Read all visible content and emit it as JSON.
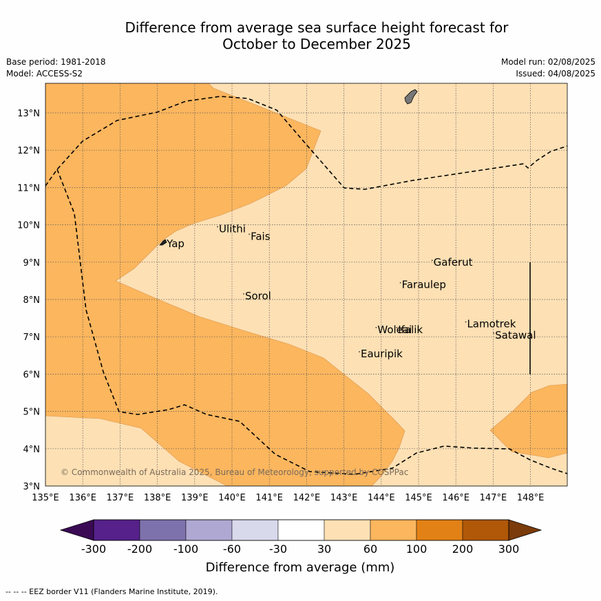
{
  "title": {
    "line1": "Difference from average sea surface height forecast for",
    "line2": "October to December 2025"
  },
  "meta": {
    "base_period": "Base period: 1981-2018",
    "model": "Model: ACCESS-S2",
    "model_run": "Model run: 02/08/2025",
    "issued": "Issued: 04/08/2025"
  },
  "map": {
    "lon_ticks": [
      "135°E",
      "136°E",
      "137°E",
      "138°E",
      "139°E",
      "140°E",
      "141°E",
      "142°E",
      "143°E",
      "144°E",
      "145°E",
      "146°E",
      "147°E",
      "148°E"
    ],
    "lat_ticks": [
      "3°N",
      "4°N",
      "5°N",
      "6°N",
      "7°N",
      "8°N",
      "9°N",
      "10°N",
      "11°N",
      "12°N",
      "13°N"
    ],
    "places": [
      {
        "name": "Yap",
        "lon": 138.25,
        "lat": 9.4
      },
      {
        "name": "Ulithi",
        "lon": 139.65,
        "lat": 9.8
      },
      {
        "name": "Fais",
        "lon": 140.5,
        "lat": 9.6
      },
      {
        "name": "Sorol",
        "lon": 140.35,
        "lat": 8.0
      },
      {
        "name": "Gaferut",
        "lon": 145.4,
        "lat": 8.9
      },
      {
        "name": "Faraulep",
        "lon": 144.55,
        "lat": 8.3
      },
      {
        "name": "Woleai",
        "lon": 143.9,
        "lat": 7.1
      },
      {
        "name": "Ifalik",
        "lon": 144.45,
        "lat": 7.1
      },
      {
        "name": "Lamotrek",
        "lon": 146.3,
        "lat": 7.25
      },
      {
        "name": "Satawal",
        "lon": 147.05,
        "lat": 6.95
      },
      {
        "name": "Eauripik",
        "lon": 143.45,
        "lat": 6.45
      }
    ],
    "copyright": "© Commonwealth of Australia 2025, Bureau of Meteorology, supported by COSPPac"
  },
  "legend": {
    "colors": [
      "#3a0a55",
      "#56218a",
      "#7e72ad",
      "#afa8d2",
      "#d9d9ec",
      "#ffffff",
      "#fde0b4",
      "#fbb65e",
      "#e28116",
      "#b05808",
      "#7b3b0a"
    ],
    "tick_labels": [
      "-300",
      "-200",
      "-100",
      "-60",
      "-30",
      "30",
      "60",
      "100",
      "200",
      "300"
    ],
    "title": "Difference from average (mm)"
  },
  "footnote": "-- -- -- EEZ border V11 (Flanders Marine Institute, 2019)."
}
